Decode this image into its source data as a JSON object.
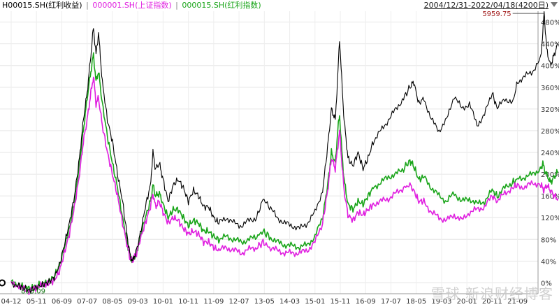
{
  "header": {
    "legend": [
      {
        "label": "H00015.SH(红利收益)",
        "color": "#000000"
      },
      {
        "label": "000001.SH(上证指数)",
        "color": "#e020e0"
      },
      {
        "label": "000015.SH(红利指数)",
        "color": "#1aa51a"
      }
    ],
    "separator": "|",
    "range_label": "2004/12/31-2022/04/18(4200日)"
  },
  "watermark": "雪球 新浪财经博客",
  "chart_data": {
    "type": "line",
    "x_ticks": [
      "04-12",
      "05-11",
      "06-09",
      "07-07",
      "08-05",
      "09-03",
      "10-01",
      "10-11",
      "11-09",
      "12-07",
      "13-05",
      "14-03",
      "15-01",
      "15-11",
      "16-09",
      "17-07",
      "18-05",
      "19-03",
      "20-01",
      "20-11",
      "21-09"
    ],
    "y_ticks": [
      "0%",
      "40%",
      "80%",
      "120%",
      "160%",
      "200%",
      "240%",
      "280%",
      "320%",
      "360%",
      "400%",
      "440%",
      "480%"
    ],
    "ylim": [
      -20,
      500
    ],
    "grid": true,
    "annotations": [
      {
        "text": "5959.75",
        "x": "2021-02",
        "y": 496
      },
      {
        "text": "803.09",
        "x": "2005-06",
        "y": -14
      }
    ],
    "series": [
      {
        "name": "H00015.SH(红利收益)",
        "color": "#000000",
        "values": [
          [
            0,
            0
          ],
          [
            0.3,
            -5
          ],
          [
            0.5,
            -10
          ],
          [
            0.7,
            -14
          ],
          [
            0.9,
            -11
          ],
          [
            1.1,
            -6
          ],
          [
            1.3,
            -3
          ],
          [
            1.5,
            2
          ],
          [
            1.7,
            10
          ],
          [
            1.9,
            32
          ],
          [
            2.1,
            70
          ],
          [
            2.3,
            110
          ],
          [
            2.5,
            160
          ],
          [
            2.7,
            230
          ],
          [
            2.85,
            300
          ],
          [
            3.0,
            350
          ],
          [
            3.15,
            420
          ],
          [
            3.25,
            470
          ],
          [
            3.35,
            420
          ],
          [
            3.45,
            460
          ],
          [
            3.6,
            370
          ],
          [
            3.8,
            300
          ],
          [
            4.0,
            260
          ],
          [
            4.2,
            200
          ],
          [
            4.4,
            150
          ],
          [
            4.6,
            80
          ],
          [
            4.7,
            50
          ],
          [
            4.8,
            40
          ],
          [
            4.95,
            60
          ],
          [
            5.1,
            90
          ],
          [
            5.3,
            140
          ],
          [
            5.5,
            180
          ],
          [
            5.6,
            240
          ],
          [
            5.7,
            210
          ],
          [
            5.85,
            220
          ],
          [
            6.0,
            190
          ],
          [
            6.2,
            150
          ],
          [
            6.4,
            180
          ],
          [
            6.6,
            190
          ],
          [
            6.8,
            175
          ],
          [
            7.0,
            150
          ],
          [
            7.2,
            170
          ],
          [
            7.4,
            160
          ],
          [
            7.6,
            140
          ],
          [
            7.8,
            140
          ],
          [
            8.0,
            120
          ],
          [
            8.2,
            110
          ],
          [
            8.5,
            120
          ],
          [
            8.8,
            110
          ],
          [
            9.1,
            105
          ],
          [
            9.4,
            115
          ],
          [
            9.7,
            120
          ],
          [
            9.95,
            155
          ],
          [
            10.2,
            140
          ],
          [
            10.5,
            120
          ],
          [
            10.8,
            110
          ],
          [
            11.1,
            105
          ],
          [
            11.4,
            100
          ],
          [
            11.7,
            110
          ],
          [
            12.0,
            130
          ],
          [
            12.3,
            170
          ],
          [
            12.5,
            250
          ],
          [
            12.65,
            320
          ],
          [
            12.8,
            300
          ],
          [
            12.9,
            380
          ],
          [
            12.97,
            450
          ],
          [
            13.05,
            380
          ],
          [
            13.15,
            300
          ],
          [
            13.3,
            230
          ],
          [
            13.5,
            215
          ],
          [
            13.7,
            240
          ],
          [
            13.9,
            210
          ],
          [
            14.1,
            230
          ],
          [
            14.3,
            260
          ],
          [
            14.6,
            280
          ],
          [
            14.9,
            300
          ],
          [
            15.2,
            320
          ],
          [
            15.5,
            340
          ],
          [
            15.75,
            360
          ],
          [
            15.9,
            370
          ],
          [
            16.1,
            330
          ],
          [
            16.3,
            340
          ],
          [
            16.6,
            300
          ],
          [
            16.9,
            280
          ],
          [
            17.2,
            300
          ],
          [
            17.5,
            345
          ],
          [
            17.8,
            320
          ],
          [
            18.1,
            330
          ],
          [
            18.4,
            290
          ],
          [
            18.7,
            310
          ],
          [
            19.0,
            350
          ],
          [
            19.2,
            320
          ],
          [
            19.5,
            340
          ],
          [
            19.8,
            330
          ],
          [
            20.0,
            370
          ],
          [
            20.3,
            380
          ],
          [
            20.6,
            390
          ],
          [
            20.9,
            410
          ],
          [
            21.0,
            460
          ],
          [
            21.05,
            500
          ],
          [
            21.15,
            430
          ],
          [
            21.3,
            400
          ],
          [
            21.45,
            420
          ],
          [
            21.6,
            440
          ]
        ]
      },
      {
        "name": "000001.SH(上证指数)",
        "color": "#e020e0",
        "values": [
          [
            0,
            0
          ],
          [
            0.3,
            -5
          ],
          [
            0.5,
            -12
          ],
          [
            0.7,
            -15
          ],
          [
            0.9,
            -11
          ],
          [
            1.1,
            -6
          ],
          [
            1.3,
            -3
          ],
          [
            1.5,
            -1
          ],
          [
            1.7,
            5
          ],
          [
            1.9,
            20
          ],
          [
            2.1,
            55
          ],
          [
            2.3,
            90
          ],
          [
            2.5,
            140
          ],
          [
            2.7,
            200
          ],
          [
            2.85,
            260
          ],
          [
            3.0,
            300
          ],
          [
            3.15,
            350
          ],
          [
            3.25,
            380
          ],
          [
            3.35,
            330
          ],
          [
            3.45,
            340
          ],
          [
            3.6,
            290
          ],
          [
            3.8,
            240
          ],
          [
            4.0,
            200
          ],
          [
            4.2,
            160
          ],
          [
            4.4,
            110
          ],
          [
            4.6,
            65
          ],
          [
            4.7,
            45
          ],
          [
            4.8,
            40
          ],
          [
            4.95,
            55
          ],
          [
            5.1,
            80
          ],
          [
            5.3,
            110
          ],
          [
            5.5,
            140
          ],
          [
            5.6,
            165
          ],
          [
            5.7,
            140
          ],
          [
            5.85,
            150
          ],
          [
            6.0,
            130
          ],
          [
            6.2,
            110
          ],
          [
            6.4,
            120
          ],
          [
            6.6,
            115
          ],
          [
            6.8,
            100
          ],
          [
            7.0,
            90
          ],
          [
            7.2,
            95
          ],
          [
            7.4,
            90
          ],
          [
            7.6,
            75
          ],
          [
            7.8,
            75
          ],
          [
            8.0,
            65
          ],
          [
            8.2,
            60
          ],
          [
            8.5,
            65
          ],
          [
            8.8,
            60
          ],
          [
            9.1,
            55
          ],
          [
            9.4,
            62
          ],
          [
            9.7,
            65
          ],
          [
            9.95,
            75
          ],
          [
            10.2,
            65
          ],
          [
            10.5,
            60
          ],
          [
            10.8,
            55
          ],
          [
            11.1,
            55
          ],
          [
            11.4,
            55
          ],
          [
            11.7,
            60
          ],
          [
            12.0,
            75
          ],
          [
            12.3,
            110
          ],
          [
            12.5,
            170
          ],
          [
            12.65,
            230
          ],
          [
            12.8,
            210
          ],
          [
            12.9,
            250
          ],
          [
            12.97,
            280
          ],
          [
            13.05,
            230
          ],
          [
            13.15,
            170
          ],
          [
            13.3,
            125
          ],
          [
            13.5,
            115
          ],
          [
            13.7,
            130
          ],
          [
            13.9,
            125
          ],
          [
            14.1,
            135
          ],
          [
            14.3,
            145
          ],
          [
            14.6,
            150
          ],
          [
            14.9,
            155
          ],
          [
            15.2,
            165
          ],
          [
            15.5,
            175
          ],
          [
            15.75,
            180
          ],
          [
            15.9,
            170
          ],
          [
            16.1,
            150
          ],
          [
            16.3,
            150
          ],
          [
            16.6,
            130
          ],
          [
            16.9,
            120
          ],
          [
            17.2,
            115
          ],
          [
            17.5,
            125
          ],
          [
            17.8,
            115
          ],
          [
            18.1,
            130
          ],
          [
            18.4,
            135
          ],
          [
            18.7,
            140
          ],
          [
            19.0,
            160
          ],
          [
            19.2,
            150
          ],
          [
            19.5,
            165
          ],
          [
            19.8,
            175
          ],
          [
            20.0,
            180
          ],
          [
            20.3,
            175
          ],
          [
            20.6,
            185
          ],
          [
            20.9,
            180
          ],
          [
            21.0,
            175
          ],
          [
            21.05,
            170
          ],
          [
            21.15,
            180
          ],
          [
            21.3,
            170
          ],
          [
            21.45,
            160
          ],
          [
            21.6,
            155
          ]
        ]
      },
      {
        "name": "000015.SH(红利指数)",
        "color": "#1aa51a",
        "values": [
          [
            0,
            0
          ],
          [
            0.3,
            -3
          ],
          [
            0.5,
            -8
          ],
          [
            0.7,
            -10
          ],
          [
            0.9,
            -8
          ],
          [
            1.1,
            -4
          ],
          [
            1.3,
            -1
          ],
          [
            1.5,
            3
          ],
          [
            1.7,
            12
          ],
          [
            1.9,
            30
          ],
          [
            2.1,
            65
          ],
          [
            2.3,
            100
          ],
          [
            2.5,
            150
          ],
          [
            2.7,
            220
          ],
          [
            2.85,
            280
          ],
          [
            3.0,
            340
          ],
          [
            3.15,
            390
          ],
          [
            3.25,
            420
          ],
          [
            3.35,
            370
          ],
          [
            3.45,
            390
          ],
          [
            3.6,
            330
          ],
          [
            3.8,
            270
          ],
          [
            4.0,
            220
          ],
          [
            4.2,
            175
          ],
          [
            4.4,
            120
          ],
          [
            4.6,
            70
          ],
          [
            4.7,
            45
          ],
          [
            4.8,
            40
          ],
          [
            4.95,
            55
          ],
          [
            5.1,
            85
          ],
          [
            5.3,
            120
          ],
          [
            5.5,
            150
          ],
          [
            5.6,
            180
          ],
          [
            5.7,
            160
          ],
          [
            5.85,
            165
          ],
          [
            6.0,
            145
          ],
          [
            6.2,
            120
          ],
          [
            6.4,
            135
          ],
          [
            6.6,
            135
          ],
          [
            6.8,
            120
          ],
          [
            7.0,
            105
          ],
          [
            7.2,
            115
          ],
          [
            7.4,
            110
          ],
          [
            7.6,
            95
          ],
          [
            7.8,
            95
          ],
          [
            8.0,
            85
          ],
          [
            8.2,
            80
          ],
          [
            8.5,
            85
          ],
          [
            8.8,
            80
          ],
          [
            9.1,
            75
          ],
          [
            9.4,
            80
          ],
          [
            9.7,
            85
          ],
          [
            9.95,
            95
          ],
          [
            10.2,
            85
          ],
          [
            10.5,
            75
          ],
          [
            10.8,
            70
          ],
          [
            11.1,
            68
          ],
          [
            11.4,
            66
          ],
          [
            11.7,
            70
          ],
          [
            12.0,
            85
          ],
          [
            12.3,
            120
          ],
          [
            12.5,
            180
          ],
          [
            12.65,
            240
          ],
          [
            12.8,
            220
          ],
          [
            12.9,
            280
          ],
          [
            12.97,
            310
          ],
          [
            13.05,
            250
          ],
          [
            13.15,
            190
          ],
          [
            13.3,
            145
          ],
          [
            13.5,
            135
          ],
          [
            13.7,
            150
          ],
          [
            13.9,
            145
          ],
          [
            14.1,
            160
          ],
          [
            14.3,
            175
          ],
          [
            14.6,
            185
          ],
          [
            14.9,
            195
          ],
          [
            15.2,
            200
          ],
          [
            15.5,
            210
          ],
          [
            15.75,
            225
          ],
          [
            15.9,
            215
          ],
          [
            16.1,
            190
          ],
          [
            16.3,
            195
          ],
          [
            16.6,
            175
          ],
          [
            16.9,
            160
          ],
          [
            17.2,
            150
          ],
          [
            17.5,
            165
          ],
          [
            17.8,
            150
          ],
          [
            18.1,
            155
          ],
          [
            18.4,
            145
          ],
          [
            18.7,
            150
          ],
          [
            19.0,
            170
          ],
          [
            19.2,
            160
          ],
          [
            19.5,
            175
          ],
          [
            19.8,
            185
          ],
          [
            20.0,
            190
          ],
          [
            20.3,
            195
          ],
          [
            20.6,
            200
          ],
          [
            20.9,
            210
          ],
          [
            21.0,
            220
          ],
          [
            21.05,
            210
          ],
          [
            21.15,
            200
          ],
          [
            21.3,
            185
          ],
          [
            21.45,
            195
          ],
          [
            21.6,
            205
          ]
        ]
      }
    ]
  }
}
